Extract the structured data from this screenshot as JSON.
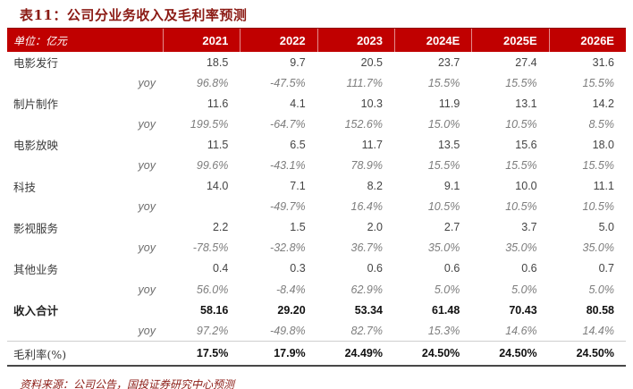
{
  "title": "表11：公司分业务收入及毛利率预测",
  "colors": {
    "header_bg": "#C00000",
    "dark_red": "#8B1A14"
  },
  "table": {
    "unit_label": "单位：亿元",
    "years": [
      "2021",
      "2022",
      "2023",
      "2024E",
      "2025E",
      "2026E"
    ],
    "rows": [
      {
        "label": "电影发行",
        "sub": "",
        "style": "value",
        "values": [
          "18.5",
          "9.7",
          "20.5",
          "23.7",
          "27.4",
          "31.6"
        ]
      },
      {
        "label": "",
        "sub": "yoy",
        "style": "yoy",
        "values": [
          "96.8%",
          "-47.5%",
          "111.7%",
          "15.5%",
          "15.5%",
          "15.5%"
        ]
      },
      {
        "label": "制片制作",
        "sub": "",
        "style": "value",
        "values": [
          "11.6",
          "4.1",
          "10.3",
          "11.9",
          "13.1",
          "14.2"
        ]
      },
      {
        "label": "",
        "sub": "yoy",
        "style": "yoy",
        "values": [
          "199.5%",
          "-64.7%",
          "152.6%",
          "15.0%",
          "10.5%",
          "8.5%"
        ]
      },
      {
        "label": "电影放映",
        "sub": "",
        "style": "value",
        "values": [
          "11.5",
          "6.5",
          "11.7",
          "13.5",
          "15.6",
          "18.0"
        ]
      },
      {
        "label": "",
        "sub": "yoy",
        "style": "yoy",
        "values": [
          "99.6%",
          "-43.1%",
          "78.9%",
          "15.5%",
          "15.5%",
          "15.5%"
        ]
      },
      {
        "label": "科技",
        "sub": "",
        "style": "value",
        "values": [
          "14.0",
          "7.1",
          "8.2",
          "9.1",
          "10.0",
          "11.1"
        ]
      },
      {
        "label": "",
        "sub": "yoy",
        "style": "yoy",
        "values": [
          "",
          "-49.7%",
          "16.4%",
          "10.5%",
          "10.5%",
          "10.5%"
        ]
      },
      {
        "label": "影视服务",
        "sub": "",
        "style": "value",
        "values": [
          "2.2",
          "1.5",
          "2.0",
          "2.7",
          "3.7",
          "5.0"
        ]
      },
      {
        "label": "",
        "sub": "yoy",
        "style": "yoy",
        "values": [
          "-78.5%",
          "-32.8%",
          "36.7%",
          "35.0%",
          "35.0%",
          "35.0%"
        ]
      },
      {
        "label": "其他业务",
        "sub": "",
        "style": "value",
        "values": [
          "0.4",
          "0.3",
          "0.6",
          "0.6",
          "0.6",
          "0.7"
        ]
      },
      {
        "label": "",
        "sub": "yoy",
        "style": "yoy",
        "values": [
          "56.0%",
          "-8.4%",
          "62.9%",
          "5.0%",
          "5.0%",
          "5.0%"
        ]
      },
      {
        "label": "收入合计",
        "sub": "",
        "style": "total",
        "values": [
          "58.16",
          "29.20",
          "53.34",
          "61.48",
          "70.43",
          "80.58"
        ]
      },
      {
        "label": "",
        "sub": "yoy",
        "style": "yoy",
        "values": [
          "97.2%",
          "-49.8%",
          "82.7%",
          "15.3%",
          "14.6%",
          "14.4%"
        ]
      },
      {
        "label": "毛利率(%)",
        "sub": "",
        "style": "margin",
        "values": [
          "17.5%",
          "17.9%",
          "24.49%",
          "24.50%",
          "24.50%",
          "24.50%"
        ]
      }
    ]
  },
  "footer": {
    "source": "资料来源：公司公告，国投证券研究中心预测"
  }
}
